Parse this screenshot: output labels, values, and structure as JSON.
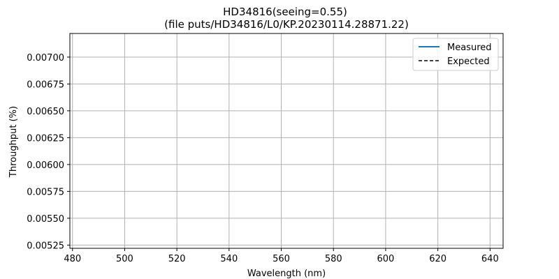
{
  "chart_data": {
    "type": "line",
    "title": "HD34816(seeing=0.55)",
    "subtitle": "(file puts/HD34816/L0/KP.20230114.28871.22)",
    "xlabel": "Wavelength (nm)",
    "ylabel": "Throughput (%)",
    "xlim": [
      479,
      645
    ],
    "ylim": [
      0.00522,
      0.00722
    ],
    "x_ticks": [
      480,
      500,
      520,
      540,
      560,
      580,
      600,
      620,
      640
    ],
    "y_ticks": [
      0.00525,
      0.0055,
      0.00575,
      0.006,
      0.00625,
      0.0065,
      0.00675,
      0.007
    ],
    "x_tick_labels": [
      "480",
      "500",
      "520",
      "540",
      "560",
      "580",
      "600",
      "620",
      "640"
    ],
    "y_tick_labels": [
      "0.00525",
      "0.00550",
      "0.00575",
      "0.00600",
      "0.00625",
      "0.00650",
      "0.00675",
      "0.00700"
    ],
    "grid": true,
    "legend_position": "top-right",
    "series": [
      {
        "name": "Measured",
        "color": "#1f77b4",
        "style": "solid",
        "x": [],
        "y": []
      },
      {
        "name": "Expected",
        "color": "#000000",
        "style": "dashed",
        "x": [],
        "y": []
      }
    ]
  }
}
